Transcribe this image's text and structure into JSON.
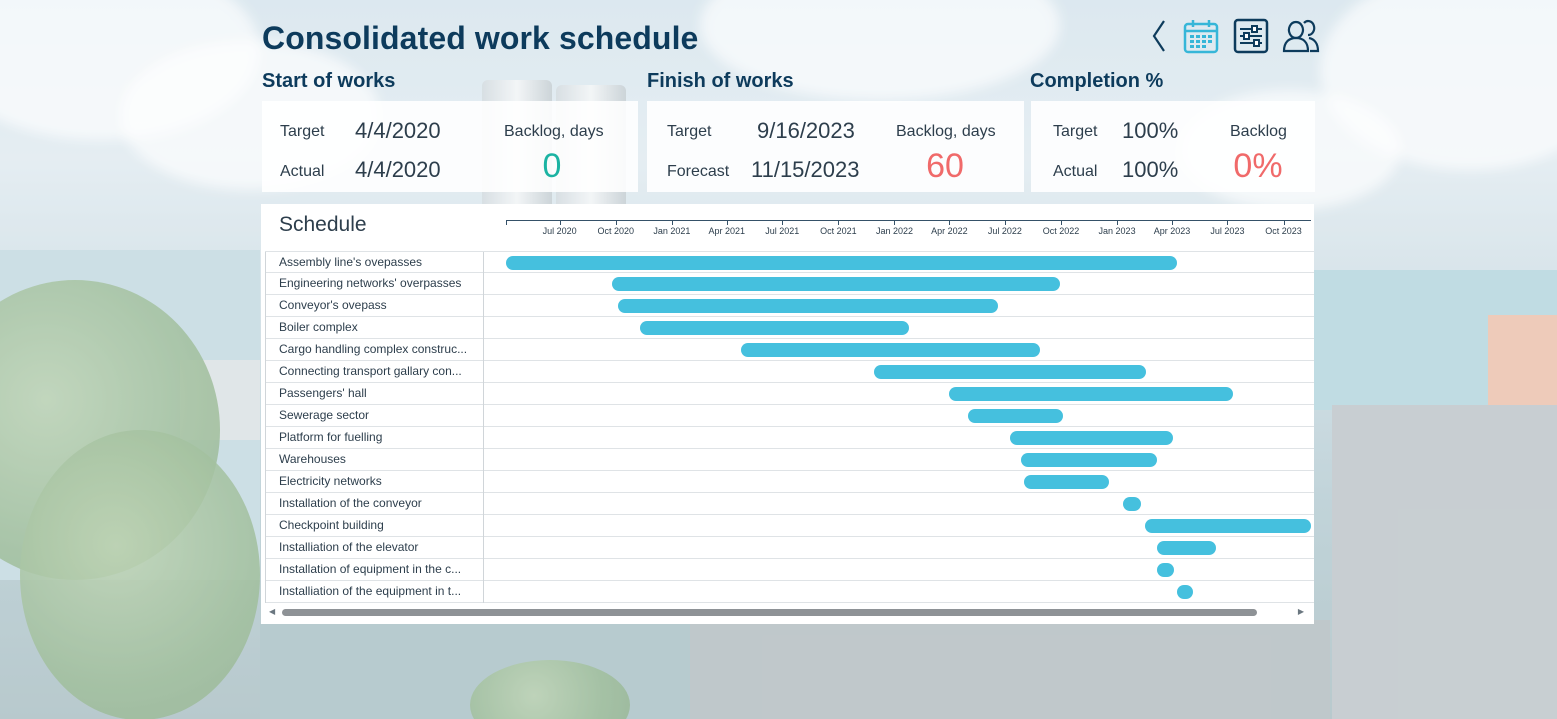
{
  "header": {
    "title": "Consolidated work schedule",
    "icons": [
      "chevron-left-icon",
      "calendar-icon",
      "sliders-icon",
      "users-icon"
    ]
  },
  "kpi": {
    "start": {
      "title": "Start of works",
      "target_label": "Target",
      "target_value": "4/4/2020",
      "actual_label": "Actual",
      "actual_value": "4/4/2020",
      "backlog_label": "Backlog, days",
      "backlog_value": "0"
    },
    "finish": {
      "title": "Finish of works",
      "target_label": "Target",
      "target_value": "9/16/2023",
      "forecast_label": "Forecast",
      "forecast_value": "11/15/2023",
      "backlog_label": "Backlog, days",
      "backlog_value": "60"
    },
    "completion": {
      "title": "Completion %",
      "target_label": "Target",
      "target_value": "100%",
      "actual_label": "Actual",
      "actual_value": "100%",
      "backlog_label": "Backlog",
      "backlog_value": "0%"
    }
  },
  "colors": {
    "bar": "#45c0de",
    "title": "#0d3b5c",
    "good": "#1bb3a3",
    "bad": "#f06a6a"
  },
  "schedule": {
    "title": "Schedule",
    "axis_start": "2020-04-04",
    "axis_end": "2023-11-15",
    "ticks": [
      {
        "label": "Jul 2020",
        "date": "2020-07-01"
      },
      {
        "label": "Oct 2020",
        "date": "2020-10-01"
      },
      {
        "label": "Jan 2021",
        "date": "2021-01-01"
      },
      {
        "label": "Apr 2021",
        "date": "2021-04-01"
      },
      {
        "label": "Jul 2021",
        "date": "2021-07-01"
      },
      {
        "label": "Oct 2021",
        "date": "2021-10-01"
      },
      {
        "label": "Jan 2022",
        "date": "2022-01-01"
      },
      {
        "label": "Apr 2022",
        "date": "2022-04-01"
      },
      {
        "label": "Jul 2022",
        "date": "2022-07-01"
      },
      {
        "label": "Oct 2022",
        "date": "2022-10-01"
      },
      {
        "label": "Jan 2023",
        "date": "2023-01-01"
      },
      {
        "label": "Apr 2023",
        "date": "2023-04-01"
      },
      {
        "label": "Jul 2023",
        "date": "2023-07-01"
      },
      {
        "label": "Oct 2023",
        "date": "2023-10-01"
      }
    ],
    "tasks": [
      {
        "name": "Assembly line's ovepasses",
        "start": "2020-04-04",
        "end": "2023-04-10"
      },
      {
        "name": "Engineering networks' overpasses",
        "start": "2020-09-25",
        "end": "2022-09-30"
      },
      {
        "name": "Conveyor's ovepass",
        "start": "2020-10-05",
        "end": "2022-06-20"
      },
      {
        "name": "Boiler complex",
        "start": "2020-11-10",
        "end": "2022-01-25"
      },
      {
        "name": "Cargo handling complex construc...",
        "start": "2021-04-25",
        "end": "2022-08-28"
      },
      {
        "name": "Connecting transport gallary con...",
        "start": "2021-11-28",
        "end": "2023-02-18"
      },
      {
        "name": "Passengers' hall",
        "start": "2022-04-01",
        "end": "2023-07-10"
      },
      {
        "name": "Sewerage sector",
        "start": "2022-05-01",
        "end": "2022-10-05"
      },
      {
        "name": "Platform for fuelling",
        "start": "2022-07-10",
        "end": "2023-04-02"
      },
      {
        "name": "Warehouses",
        "start": "2022-07-28",
        "end": "2023-03-08"
      },
      {
        "name": "Electricity networks",
        "start": "2022-08-01",
        "end": "2022-12-18"
      },
      {
        "name": "Installation of the conveyor",
        "start": "2023-01-10",
        "end": "2023-02-10"
      },
      {
        "name": "Checkpoint building",
        "start": "2023-02-16",
        "end": "2023-11-15"
      },
      {
        "name": "Installiation of the elevator",
        "start": "2023-03-08",
        "end": "2023-06-12"
      },
      {
        "name": "Installation of equipment in the c...",
        "start": "2023-03-08",
        "end": "2023-04-05"
      },
      {
        "name": "Installiation of the equipment in t...",
        "start": "2023-04-10",
        "end": "2023-05-05"
      }
    ]
  }
}
